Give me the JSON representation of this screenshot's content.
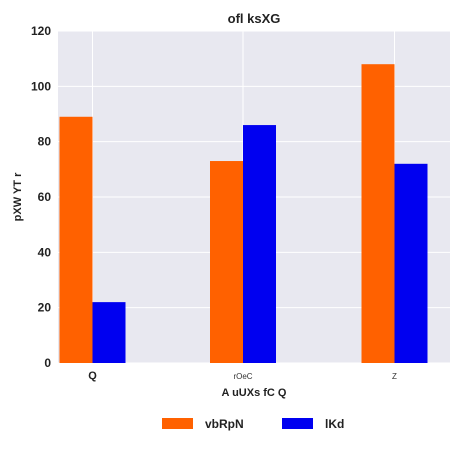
{
  "chart_data": {
    "type": "bar",
    "title": "ofl ksXG",
    "xlabel": "A uUXs fC Q",
    "ylabel": "pXW YT r",
    "categories": [
      "Q",
      "rOeC",
      "Z"
    ],
    "series": [
      {
        "name": "vbRpN",
        "values": [
          89,
          73,
          108
        ],
        "color": "#ff6100"
      },
      {
        "name": "lKd",
        "values": [
          22,
          86,
          72
        ],
        "color": "#0000f0"
      }
    ],
    "ylim": [
      0,
      120
    ],
    "yticks": [
      "0",
      "20",
      "40",
      "60",
      "80",
      "100",
      "120"
    ],
    "grid": true,
    "legend_position": "bottom-center",
    "plot_background": "#e8e8f0"
  }
}
